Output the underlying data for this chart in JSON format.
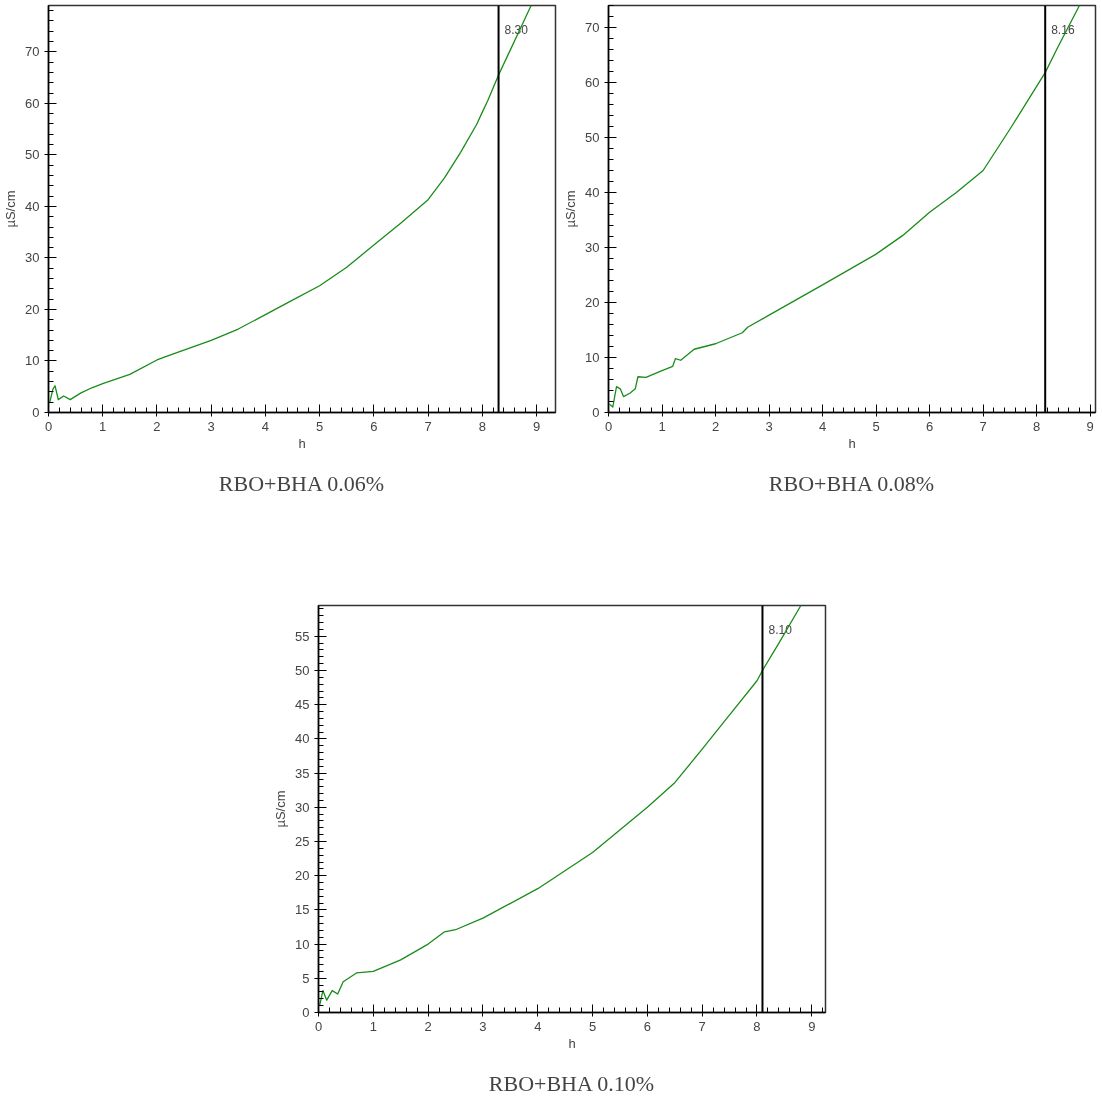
{
  "chart_data": [
    {
      "type": "line",
      "title": "RBO+BHA 0.06%",
      "xlabel": "h",
      "ylabel": "µS/cm",
      "xlim": [
        0,
        9.35
      ],
      "ylim": [
        0,
        79
      ],
      "xticks": [
        0,
        1,
        2,
        3,
        4,
        5,
        6,
        7,
        8,
        9
      ],
      "yticks": [
        0,
        10,
        20,
        30,
        40,
        50,
        60,
        70
      ],
      "grid": false,
      "marker": "none",
      "line_style": "solid",
      "x": [
        0.02,
        0.08,
        0.12,
        0.18,
        0.28,
        0.4,
        0.6,
        0.8,
        1.0,
        1.5,
        2.0,
        2.2,
        3.0,
        3.5,
        4.0,
        4.5,
        5.0,
        5.5,
        6.0,
        6.5,
        7.0,
        7.3,
        7.6,
        7.9,
        8.0,
        8.1,
        8.3,
        8.5,
        8.7,
        8.9
      ],
      "series": [
        {
          "color": "#1a8c1a",
          "values": [
            1.8,
            4.5,
            5.2,
            2.5,
            3.2,
            2.5,
            3.8,
            4.8,
            5.6,
            7.4,
            10.2,
            11.0,
            14.0,
            16.2,
            19.0,
            21.8,
            24.6,
            28.2,
            32.5,
            36.8,
            41.3,
            45.5,
            50.5,
            56.0,
            58.3,
            60.5,
            65.5,
            70.0,
            74.5,
            79.0
          ]
        }
      ],
      "ref_lines": [
        {
          "axis": "x",
          "value": 8.3,
          "label": "8.30",
          "color": "#000000"
        }
      ]
    },
    {
      "type": "line",
      "title": "RBO+BHA 0.08%",
      "xlabel": "h",
      "ylabel": "µS/cm",
      "xlim": [
        0,
        9.1
      ],
      "ylim": [
        0,
        74
      ],
      "xticks": [
        0,
        1,
        2,
        3,
        4,
        5,
        6,
        7,
        8,
        9
      ],
      "yticks": [
        0,
        10,
        20,
        30,
        40,
        50,
        60,
        70
      ],
      "grid": false,
      "marker": "none",
      "line_style": "solid",
      "x": [
        0.02,
        0.08,
        0.15,
        0.22,
        0.28,
        0.4,
        0.5,
        0.55,
        0.7,
        1.0,
        1.2,
        1.25,
        1.35,
        1.6,
        2.0,
        2.5,
        2.6,
        3.0,
        4.0,
        5.0,
        5.5,
        6.0,
        6.5,
        7.0,
        7.5,
        8.0,
        8.16,
        8.4,
        8.8
      ],
      "series": [
        {
          "color": "#1a8c1a",
          "values": [
            1.5,
            1.0,
            4.7,
            4.3,
            2.9,
            3.5,
            4.3,
            6.5,
            6.4,
            7.6,
            8.4,
            9.8,
            9.5,
            11.5,
            12.5,
            14.5,
            15.5,
            17.7,
            23.2,
            28.8,
            32.2,
            36.4,
            40.0,
            44.0,
            51.5,
            59.3,
            61.8,
            66.5,
            74.0
          ]
        }
      ],
      "ref_lines": [
        {
          "axis": "x",
          "value": 8.16,
          "label": "8.16",
          "color": "#000000"
        }
      ]
    },
    {
      "type": "line",
      "title": "RBO+BHA 0.10%",
      "xlabel": "h",
      "ylabel": "µS/cm",
      "xlim": [
        0,
        9.25
      ],
      "ylim": [
        0,
        59.5
      ],
      "xticks": [
        0,
        1,
        2,
        3,
        4,
        5,
        6,
        7,
        8,
        9
      ],
      "yticks": [
        0,
        5,
        10,
        15,
        20,
        25,
        30,
        35,
        40,
        45,
        50,
        55
      ],
      "grid": false,
      "marker": "none",
      "line_style": "solid",
      "x": [
        0.02,
        0.08,
        0.15,
        0.25,
        0.35,
        0.45,
        0.7,
        1.0,
        1.5,
        2.0,
        2.3,
        2.5,
        3.0,
        4.0,
        5.0,
        6.0,
        6.5,
        7.0,
        7.5,
        8.0,
        8.1,
        8.4,
        8.8
      ],
      "series": [
        {
          "color": "#1a8c1a",
          "values": [
            1.0,
            3.2,
            1.8,
            3.2,
            2.7,
            4.5,
            5.8,
            6.0,
            7.7,
            10.0,
            11.8,
            12.1,
            13.8,
            18.1,
            23.4,
            30.0,
            33.6,
            38.5,
            43.5,
            48.5,
            50.0,
            54.0,
            59.5
          ]
        }
      ],
      "ref_lines": [
        {
          "axis": "x",
          "value": 8.1,
          "label": "8.10",
          "color": "#000000"
        }
      ]
    }
  ]
}
